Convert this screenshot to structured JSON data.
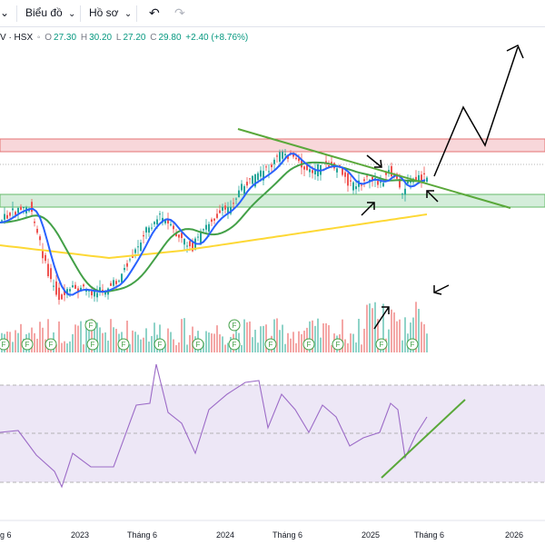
{
  "toolbar": {
    "chart_menu": "Biểu đồ",
    "profile_menu": "Hồ sơ"
  },
  "legend": {
    "symbol": "V · HSX",
    "open_label": "O",
    "open": "27.30",
    "high_label": "H",
    "high": "30.20",
    "low_label": "L",
    "low": "27.20",
    "close_label": "C",
    "close": "29.80",
    "change": "+2.40 (+8.76%)"
  },
  "x_axis": {
    "labels": [
      "g 6",
      "2023",
      "Tháng 6",
      "2024",
      "Tháng 6",
      "2025",
      "Tháng 6",
      "2026"
    ]
  },
  "markers": {
    "letter": "F"
  },
  "colors": {
    "up": "#26a69a",
    "down": "#ef5350",
    "ma_short": "#2962ff",
    "ma_mid": "#43a047",
    "ma_long": "#fdd835",
    "rsi": "#9c6bc7",
    "rsi_band": "#ede7f6",
    "resistance_zone": "#f8d7da",
    "support_zone": "#d4edda",
    "trendline": "#5aa83a"
  },
  "chart_data": {
    "type": "candlestick",
    "panes": [
      "price",
      "volume",
      "rsi"
    ],
    "last_bar": {
      "open": 27.3,
      "high": 30.2,
      "low": 27.2,
      "close": 29.8,
      "change": 2.4,
      "change_pct": 8.76
    }
  }
}
